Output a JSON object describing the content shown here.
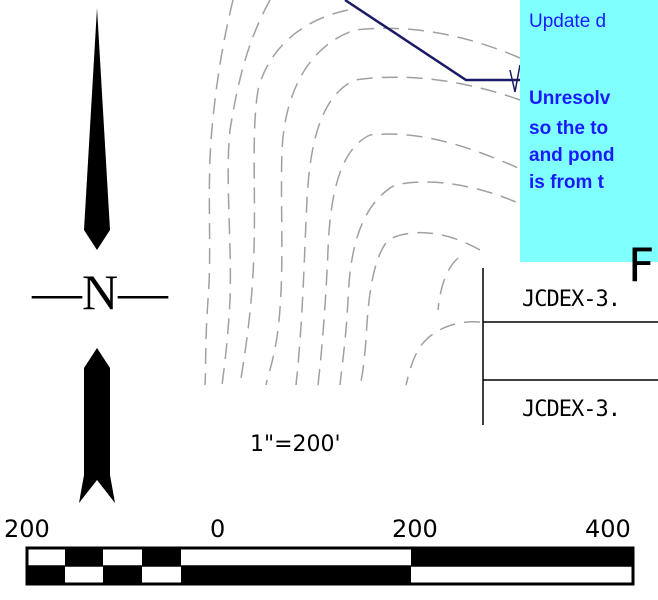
{
  "north_arrow": {
    "label": "—N—"
  },
  "scale": {
    "ratio_text": "1\"=200'",
    "tick_labels": [
      "200",
      "0",
      "200",
      "400"
    ]
  },
  "note": {
    "lines": [
      {
        "text": "Update d",
        "bold": false
      },
      {
        "text": "Unresolv",
        "bold": true
      },
      {
        "text": "so the to",
        "bold": true
      },
      {
        "text": "and pond",
        "bold": true
      },
      {
        "text": "is from t",
        "bold": true
      }
    ],
    "background": "#80ffff",
    "text_color": "#1a1aff"
  },
  "table": {
    "rows": [
      "JCDEX-3.",
      "JCDEX-3."
    ],
    "partial_heading": "F"
  },
  "colors": {
    "contour": "#a0a0a0",
    "road": "#1a1a66",
    "ink": "#000000"
  }
}
